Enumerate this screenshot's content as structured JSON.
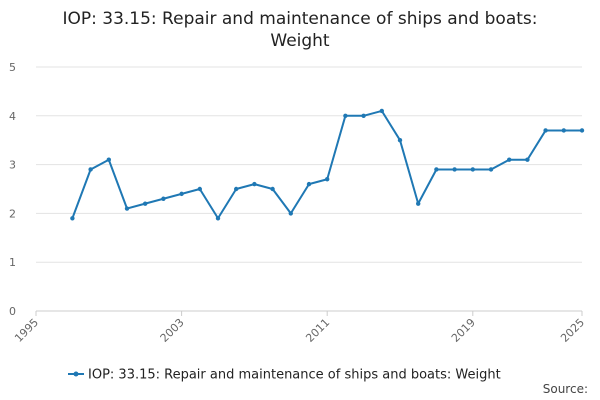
{
  "chart_data": {
    "type": "line",
    "title_lines": [
      "IOP: 33.15: Repair and maintenance of ships and boats:",
      "Weight"
    ],
    "xlabel": "",
    "ylabel": "",
    "xlim": [
      1995,
      2025
    ],
    "ylim": [
      0,
      5
    ],
    "x_ticks": [
      1995,
      2003,
      2011,
      2019,
      2025
    ],
    "y_ticks": [
      0,
      1,
      2,
      3,
      4,
      5
    ],
    "grid": "horizontal",
    "legend_position": "bottom",
    "series": [
      {
        "name": "IOP: 33.15: Repair and maintenance of ships and boats: Weight",
        "color": "#1f78b4",
        "points": [
          {
            "x": 1997,
            "y": 1.9
          },
          {
            "x": 1998,
            "y": 2.9
          },
          {
            "x": 1999,
            "y": 3.1
          },
          {
            "x": 2000,
            "y": 2.1
          },
          {
            "x": 2001,
            "y": 2.2
          },
          {
            "x": 2002,
            "y": 2.3
          },
          {
            "x": 2003,
            "y": 2.4
          },
          {
            "x": 2004,
            "y": 2.5
          },
          {
            "x": 2005,
            "y": 1.9
          },
          {
            "x": 2006,
            "y": 2.5
          },
          {
            "x": 2007,
            "y": 2.6
          },
          {
            "x": 2008,
            "y": 2.5
          },
          {
            "x": 2009,
            "y": 2.0
          },
          {
            "x": 2010,
            "y": 2.6
          },
          {
            "x": 2011,
            "y": 2.7
          },
          {
            "x": 2012,
            "y": 4.0
          },
          {
            "x": 2013,
            "y": 4.0
          },
          {
            "x": 2014,
            "y": 4.1
          },
          {
            "x": 2015,
            "y": 3.5
          },
          {
            "x": 2016,
            "y": 2.2
          },
          {
            "x": 2017,
            "y": 2.9
          },
          {
            "x": 2018,
            "y": 2.9
          },
          {
            "x": 2019,
            "y": 2.9
          },
          {
            "x": 2020,
            "y": 2.9
          },
          {
            "x": 2021,
            "y": 3.1
          },
          {
            "x": 2022,
            "y": 3.1
          },
          {
            "x": 2023,
            "y": 3.7
          },
          {
            "x": 2024,
            "y": 3.7
          },
          {
            "x": 2025,
            "y": 3.7
          }
        ]
      }
    ],
    "source_label": "Source:"
  }
}
